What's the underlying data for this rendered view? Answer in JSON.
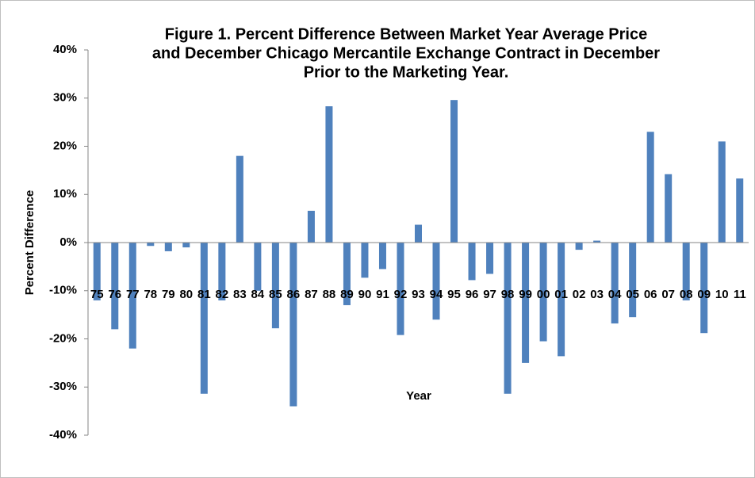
{
  "chart_data": {
    "type": "bar",
    "title": [
      "Figure 1.  Percent Difference Between Market Year Average Price",
      "and December Chicago Mercantile Exchange Contract in December",
      "Prior to the Marketing Year."
    ],
    "x_label": "Year",
    "y_label": "Percent Difference",
    "categories": [
      "75",
      "76",
      "77",
      "78",
      "79",
      "80",
      "81",
      "82",
      "83",
      "84",
      "85",
      "86",
      "87",
      "88",
      "89",
      "90",
      "91",
      "92",
      "93",
      "94",
      "95",
      "96",
      "97",
      "98",
      "99",
      "00",
      "01",
      "02",
      "03",
      "04",
      "05",
      "06",
      "07",
      "08",
      "09",
      "10",
      "11"
    ],
    "values": [
      -12,
      -18,
      -22,
      -0.7,
      -1.8,
      -1,
      -31.4,
      -12,
      18,
      -10,
      -17.8,
      -34,
      6.6,
      28.3,
      -13,
      -7.3,
      -5.5,
      -19.2,
      3.7,
      -16,
      29.6,
      -7.8,
      -6.5,
      -31.4,
      -25,
      -20.5,
      -23.6,
      -1.5,
      0.4,
      -16.8,
      -15.5,
      23,
      14.2,
      -12,
      -18.8,
      21,
      13.3
    ],
    "color": "#4f81bd",
    "ylim": [
      -40,
      40
    ],
    "yticks": [
      {
        "value": -40,
        "label": "-40%"
      },
      {
        "value": -30,
        "label": "-30%"
      },
      {
        "value": -20,
        "label": "-20%"
      },
      {
        "value": -10,
        "label": "-10%"
      },
      {
        "value": 0,
        "label": "0%"
      },
      {
        "value": 10,
        "label": "10%"
      },
      {
        "value": 20,
        "label": "20%"
      },
      {
        "value": 30,
        "label": "30%"
      },
      {
        "value": 40,
        "label": "40%"
      }
    ]
  }
}
